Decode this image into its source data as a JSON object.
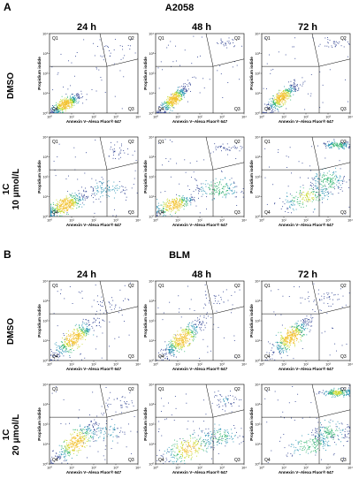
{
  "figure": {
    "panels": [
      {
        "letter": "A",
        "title": "A2058",
        "columns": [
          "24 h",
          "48 h",
          "72 h"
        ],
        "rows": [
          {
            "label_lines": [
              "DMSO"
            ]
          },
          {
            "label_lines": [
              "1C",
              "10 μmol/L"
            ]
          }
        ]
      },
      {
        "letter": "B",
        "title": "BLM",
        "columns": [
          "24 h",
          "48 h",
          "72 h"
        ],
        "rows": [
          {
            "label_lines": [
              "DMSO"
            ]
          },
          {
            "label_lines": [
              "1C",
              "20 μmol/L"
            ]
          }
        ]
      }
    ]
  },
  "chart_data": {
    "type": "scatter",
    "subtype": "flow-cytometry density dot plot",
    "xlabel": "Annexin V–Alexa Fluor® 647",
    "ylabel": "Propidium iodide",
    "x_scale": "log",
    "y_scale": "log",
    "x_ticks": [
      "10⁰",
      "10¹",
      "10²",
      "10³",
      "10⁴"
    ],
    "y_ticks": [
      "10⁰",
      "10¹",
      "10²",
      "10³",
      "10⁴"
    ],
    "quadrant_labels": [
      "Q1",
      "Q2",
      "Q3",
      "Q4"
    ],
    "density_colors": [
      "#2a3d8f",
      "#1f8fb0",
      "#2fb36e",
      "#c8d82a",
      "#f2c12e"
    ],
    "plots": [
      {
        "cell_line": "A2058",
        "treatment": "DMSO",
        "time": "24 h",
        "clusters": [
          {
            "x": 0.7,
            "y": 0.45,
            "sx": 0.35,
            "sy": 0.25,
            "tilt": 0.8,
            "n": 420
          },
          {
            "x": 2.8,
            "y": 3.0,
            "sx": 0.5,
            "sy": 0.5,
            "tilt": 0,
            "n": 20
          }
        ]
      },
      {
        "cell_line": "A2058",
        "treatment": "DMSO",
        "time": "48 h",
        "clusters": [
          {
            "x": 0.8,
            "y": 0.7,
            "sx": 0.32,
            "sy": 0.3,
            "tilt": 1.0,
            "n": 420
          },
          {
            "x": 3.2,
            "y": 3.5,
            "sx": 0.3,
            "sy": 0.2,
            "tilt": 0,
            "n": 25
          }
        ]
      },
      {
        "cell_line": "A2058",
        "treatment": "DMSO",
        "time": "72 h",
        "clusters": [
          {
            "x": 0.9,
            "y": 0.8,
            "sx": 0.35,
            "sy": 0.3,
            "tilt": 1.0,
            "n": 420
          },
          {
            "x": 3.3,
            "y": 3.5,
            "sx": 0.3,
            "sy": 0.2,
            "tilt": 0,
            "n": 30
          }
        ]
      },
      {
        "cell_line": "A2058",
        "treatment": "1C 10 μmol/L",
        "time": "24 h",
        "clusters": [
          {
            "x": 0.7,
            "y": 0.6,
            "sx": 0.45,
            "sy": 0.35,
            "tilt": 0.6,
            "n": 420
          },
          {
            "x": 2.6,
            "y": 1.4,
            "sx": 0.5,
            "sy": 0.4,
            "tilt": 0,
            "n": 100
          },
          {
            "x": 3.0,
            "y": 3.3,
            "sx": 0.4,
            "sy": 0.4,
            "tilt": 0,
            "n": 30
          }
        ]
      },
      {
        "cell_line": "A2058",
        "treatment": "1C 10 μmol/L",
        "time": "48 h",
        "clusters": [
          {
            "x": 0.8,
            "y": 0.6,
            "sx": 0.45,
            "sy": 0.3,
            "tilt": 0.6,
            "n": 300
          },
          {
            "x": 2.8,
            "y": 1.4,
            "sx": 0.5,
            "sy": 0.4,
            "tilt": 0,
            "n": 160
          },
          {
            "x": 3.2,
            "y": 3.5,
            "sx": 0.4,
            "sy": 0.2,
            "tilt": 0,
            "n": 40
          }
        ]
      },
      {
        "cell_line": "A2058",
        "treatment": "1C 10 μmol/L",
        "time": "72 h",
        "clusters": [
          {
            "x": 2.0,
            "y": 1.0,
            "sx": 0.6,
            "sy": 0.4,
            "tilt": 0.5,
            "n": 200
          },
          {
            "x": 3.0,
            "y": 1.8,
            "sx": 0.4,
            "sy": 0.4,
            "tilt": 0,
            "n": 160
          },
          {
            "x": 3.4,
            "y": 3.6,
            "sx": 0.35,
            "sy": 0.15,
            "tilt": 0,
            "n": 140
          }
        ]
      },
      {
        "cell_line": "BLM",
        "treatment": "DMSO",
        "time": "24 h",
        "clusters": [
          {
            "x": 1.1,
            "y": 1.1,
            "sx": 0.5,
            "sy": 0.4,
            "tilt": 1.0,
            "n": 430
          },
          {
            "x": 2.6,
            "y": 2.8,
            "sx": 0.5,
            "sy": 0.5,
            "tilt": 0,
            "n": 30
          }
        ]
      },
      {
        "cell_line": "BLM",
        "treatment": "DMSO",
        "time": "48 h",
        "clusters": [
          {
            "x": 1.2,
            "y": 1.1,
            "sx": 0.45,
            "sy": 0.4,
            "tilt": 1.0,
            "n": 430
          },
          {
            "x": 2.8,
            "y": 3.0,
            "sx": 0.5,
            "sy": 0.5,
            "tilt": 0,
            "n": 30
          }
        ]
      },
      {
        "cell_line": "BLM",
        "treatment": "DMSO",
        "time": "72 h",
        "clusters": [
          {
            "x": 1.3,
            "y": 1.2,
            "sx": 0.45,
            "sy": 0.4,
            "tilt": 1.0,
            "n": 430
          },
          {
            "x": 2.9,
            "y": 3.2,
            "sx": 0.5,
            "sy": 0.4,
            "tilt": 0,
            "n": 40
          }
        ]
      },
      {
        "cell_line": "BLM",
        "treatment": "1C 20 μmol/L",
        "time": "24 h",
        "clusters": [
          {
            "x": 1.2,
            "y": 1.1,
            "sx": 0.5,
            "sy": 0.45,
            "tilt": 0.9,
            "n": 380
          },
          {
            "x": 2.6,
            "y": 1.6,
            "sx": 0.5,
            "sy": 0.5,
            "tilt": 0,
            "n": 70
          },
          {
            "x": 3.0,
            "y": 3.0,
            "sx": 0.4,
            "sy": 0.4,
            "tilt": 0,
            "n": 30
          }
        ]
      },
      {
        "cell_line": "BLM",
        "treatment": "1C 20 μmol/L",
        "time": "48 h",
        "clusters": [
          {
            "x": 1.5,
            "y": 0.8,
            "sx": 0.6,
            "sy": 0.45,
            "tilt": 0.5,
            "n": 260
          },
          {
            "x": 2.9,
            "y": 1.4,
            "sx": 0.5,
            "sy": 0.4,
            "tilt": 0,
            "n": 130
          },
          {
            "x": 3.1,
            "y": 3.2,
            "sx": 0.4,
            "sy": 0.3,
            "tilt": 0,
            "n": 50
          }
        ]
      },
      {
        "cell_line": "BLM",
        "treatment": "1C 20 μmol/L",
        "time": "72 h",
        "clusters": [
          {
            "x": 2.2,
            "y": 1.0,
            "sx": 0.6,
            "sy": 0.4,
            "tilt": 0.4,
            "n": 160
          },
          {
            "x": 3.1,
            "y": 1.6,
            "sx": 0.4,
            "sy": 0.4,
            "tilt": 0,
            "n": 150
          },
          {
            "x": 3.4,
            "y": 3.6,
            "sx": 0.35,
            "sy": 0.15,
            "tilt": 0,
            "n": 200
          }
        ]
      }
    ]
  }
}
